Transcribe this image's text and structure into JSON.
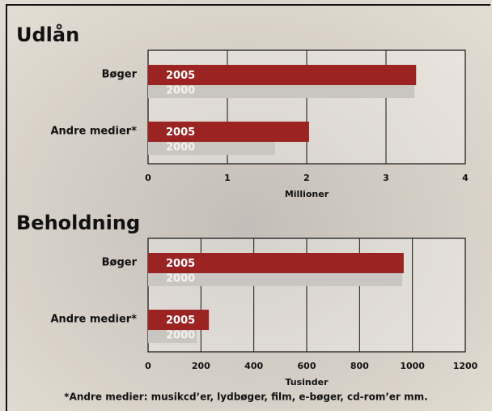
{
  "chart_data": [
    {
      "type": "bar",
      "title": "Udlån",
      "categories": [
        "Bøger",
        "Andre medier*"
      ],
      "series": [
        {
          "name": "2005",
          "color": "#9b2423",
          "values": [
            3.38,
            2.03
          ]
        },
        {
          "name": "2000",
          "color": "#c9c6c1",
          "values": [
            3.36,
            1.6
          ]
        }
      ],
      "xlim": [
        0,
        4
      ],
      "xticks": [
        0,
        1,
        2,
        3,
        4
      ],
      "xlabel": "Millioner",
      "grid": true
    },
    {
      "type": "bar",
      "title": "Beholdning",
      "categories": [
        "Bøger",
        "Andre medier*"
      ],
      "series": [
        {
          "name": "2005",
          "color": "#9b2423",
          "values": [
            967,
            230
          ]
        },
        {
          "name": "2000",
          "color": "#c9c6c1",
          "values": [
            962,
            184
          ]
        }
      ],
      "xlim": [
        0,
        1200
      ],
      "xticks": [
        0,
        200,
        400,
        600,
        800,
        1000,
        1200
      ],
      "xlabel": "Tusinder",
      "grid": true
    }
  ],
  "footnote": "*Andre medier: musikcd’er, lydbøger, film, e-bøger, cd-rom’er mm."
}
